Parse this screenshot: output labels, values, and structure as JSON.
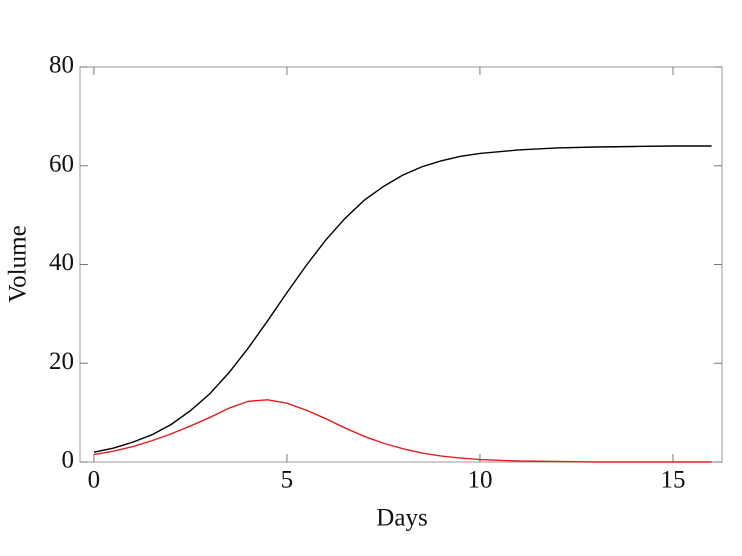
{
  "chart_data": {
    "type": "line",
    "x_label": "Days",
    "y_label": "Volume",
    "x": [
      0,
      0.5,
      1,
      1.5,
      2,
      2.5,
      3,
      3.5,
      4,
      4.5,
      5,
      5.5,
      6,
      6.5,
      7,
      7.5,
      8,
      8.5,
      9,
      9.5,
      10,
      11,
      12,
      13,
      14,
      15,
      16
    ],
    "series": [
      {
        "color": "#000000",
        "values": [
          2.0,
          2.8,
          4.0,
          5.5,
          7.6,
          10.4,
          13.8,
          18.1,
          23.1,
          28.6,
          34.3,
          39.8,
          44.9,
          49.3,
          53.0,
          55.8,
          58.1,
          59.8,
          61.0,
          61.9,
          62.5,
          63.2,
          63.6,
          63.8,
          63.9,
          64.0,
          64.0
        ]
      },
      {
        "color": "#e02020",
        "values": [
          1.5,
          2.2,
          3.1,
          4.3,
          5.7,
          7.3,
          9.0,
          10.9,
          12.3,
          12.6,
          11.9,
          10.5,
          8.8,
          6.9,
          5.2,
          3.8,
          2.7,
          1.8,
          1.2,
          0.8,
          0.5,
          0.2,
          0.1,
          0,
          0,
          0,
          0
        ]
      }
    ],
    "xlim": [
      -0.36,
      16.27
    ],
    "ylim": [
      0,
      80
    ],
    "xticks": [
      0,
      5,
      10,
      15
    ],
    "yticks": [
      0,
      20,
      40,
      60,
      80
    ]
  }
}
